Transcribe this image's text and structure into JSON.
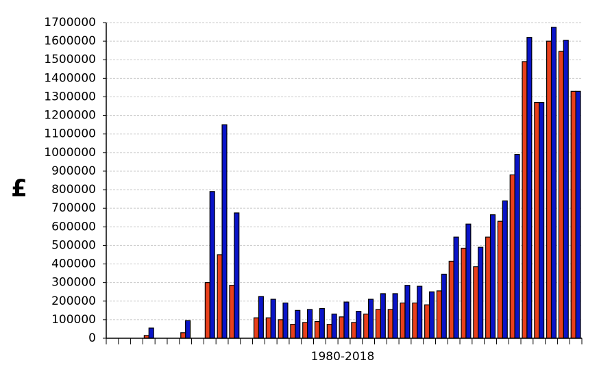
{
  "chart_data": {
    "type": "bar",
    "x_label": "1980-2018",
    "y_label": "£",
    "categories": [
      null,
      null,
      null,
      null,
      null,
      null,
      null,
      null,
      null,
      null,
      null,
      null,
      null,
      null,
      null,
      null,
      null,
      null,
      null,
      null,
      null,
      null,
      null,
      null,
      null,
      null,
      null,
      null,
      null,
      null,
      null,
      null,
      null,
      null,
      null,
      null,
      null,
      null,
      null
    ],
    "series": [
      {
        "color": "#e8401c",
        "values": [
          0,
          0,
          0,
          15000,
          0,
          0,
          30000,
          0,
          300000,
          450000,
          285000,
          0,
          110000,
          110000,
          100000,
          75000,
          85000,
          90000,
          75000,
          115000,
          85000,
          130000,
          155000,
          155000,
          190000,
          190000,
          180000,
          255000,
          415000,
          485000,
          385000,
          545000,
          630000,
          880000,
          1490000,
          1270000,
          1600000,
          1545000,
          1330000
        ]
      },
      {
        "color": "#0a14c8",
        "values": [
          0,
          0,
          0,
          55000,
          0,
          0,
          95000,
          0,
          790000,
          1150000,
          675000,
          0,
          225000,
          210000,
          190000,
          150000,
          155000,
          160000,
          130000,
          195000,
          145000,
          210000,
          240000,
          240000,
          285000,
          280000,
          250000,
          345000,
          545000,
          615000,
          490000,
          665000,
          740000,
          990000,
          1620000,
          1270000,
          1675000,
          1605000,
          1330000
        ]
      }
    ],
    "ylim": [
      0,
      1700000
    ],
    "yticks": [
      0,
      100000,
      200000,
      300000,
      400000,
      500000,
      600000,
      700000,
      800000,
      900000,
      1000000,
      1100000,
      1200000,
      1300000,
      1400000,
      1500000,
      1600000,
      1700000
    ],
    "grid": true
  }
}
